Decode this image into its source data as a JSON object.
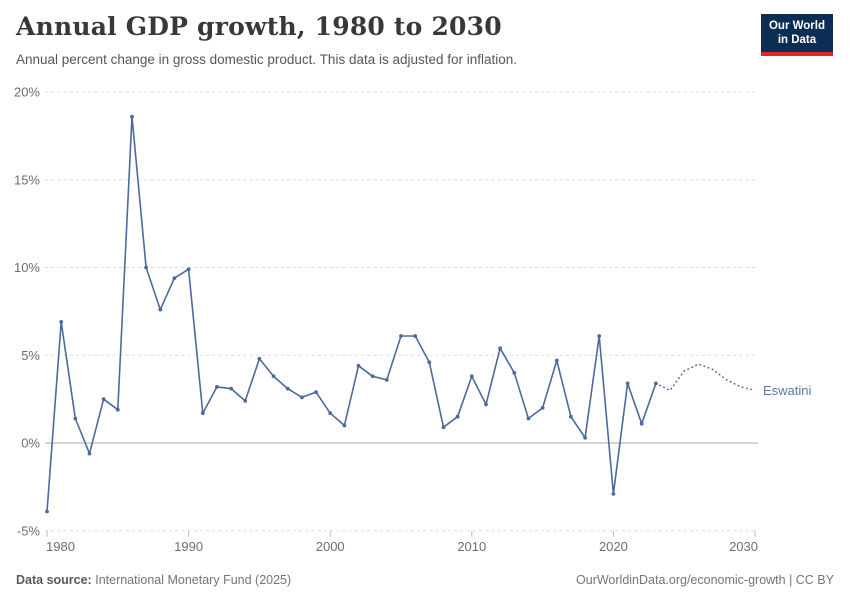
{
  "header": {
    "title": "Annual GDP growth, 1980 to 2030",
    "subtitle": "Annual percent change in gross domestic product. This data is adjusted for inflation.",
    "logo": {
      "line1": "Our World",
      "line2": "in Data"
    }
  },
  "chart_data": {
    "type": "line",
    "title": "Annual GDP growth, 1980 to 2030",
    "entity_label": "Eswatini",
    "unit": "%",
    "xlim": [
      1980,
      2030
    ],
    "ylim": [
      -5,
      20
    ],
    "x_ticks": [
      1980,
      1990,
      2000,
      2010,
      2020,
      2030
    ],
    "y_ticks": [
      20,
      15,
      10,
      5,
      0,
      -5
    ],
    "grid": true,
    "legend_position": "right-of-line",
    "colors": {
      "line": "#4c6a9c",
      "entity_label": "#5b7a9f",
      "gridline": "#dcdcdc",
      "zero_line": "#a8a8a8",
      "axis_text": "#6e6e6e",
      "tick_mark": "#bcbcbc"
    },
    "series": [
      {
        "name": "Eswatini",
        "style": "solid",
        "markers": true,
        "x": [
          1980,
          1981,
          1982,
          1983,
          1984,
          1985,
          1986,
          1987,
          1988,
          1989,
          1990,
          1991,
          1992,
          1993,
          1994,
          1995,
          1996,
          1997,
          1998,
          1999,
          2000,
          2001,
          2002,
          2003,
          2004,
          2005,
          2006,
          2007,
          2008,
          2009,
          2010,
          2011,
          2012,
          2013,
          2014,
          2015,
          2016,
          2017,
          2018,
          2019,
          2020,
          2021,
          2022,
          2023
        ],
        "values": [
          -3.9,
          6.9,
          1.4,
          -0.6,
          2.5,
          1.9,
          18.6,
          10.0,
          7.6,
          9.4,
          9.9,
          1.7,
          3.2,
          3.1,
          2.4,
          4.8,
          3.8,
          3.1,
          2.6,
          2.9,
          1.7,
          1.0,
          4.4,
          3.8,
          3.6,
          6.1,
          6.1,
          4.6,
          0.9,
          1.5,
          3.8,
          2.2,
          5.4,
          4.0,
          1.4,
          2.0,
          4.7,
          1.5,
          0.3,
          6.1,
          -2.9,
          3.4,
          1.1,
          3.4
        ]
      },
      {
        "name": "Eswatini (projection)",
        "style": "dotted",
        "markers": false,
        "x": [
          2023,
          2024,
          2025,
          2026,
          2027,
          2028,
          2029,
          2030
        ],
        "values": [
          3.4,
          3.0,
          4.1,
          4.5,
          4.2,
          3.6,
          3.2,
          3.0
        ]
      }
    ]
  },
  "footer": {
    "source_label": "Data source:",
    "source_text": "International Monetary Fund (2025)",
    "attribution": "OurWorldinData.org/economic-growth | CC BY"
  }
}
